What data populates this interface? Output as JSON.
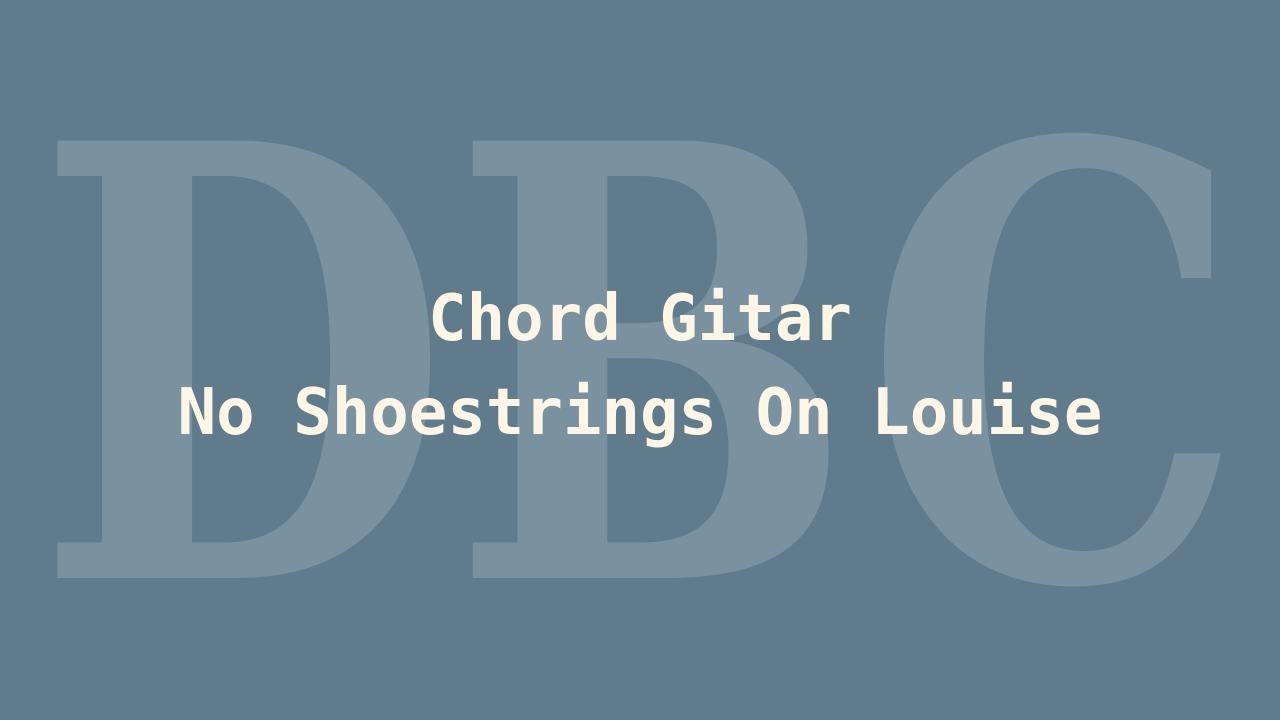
{
  "watermark": {
    "text": "DBC",
    "color": "#7a91a0"
  },
  "title": {
    "line1": "Chord Gitar",
    "line2": "No Shoestrings On Louise",
    "color": "#fdf5e6"
  },
  "background_color": "#5f7b8c"
}
